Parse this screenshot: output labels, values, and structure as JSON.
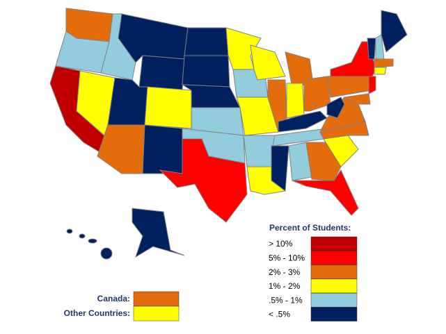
{
  "legend": {
    "title": "Percent of Students:",
    "items": [
      {
        "label": "> 10%",
        "color": "#c00000"
      },
      {
        "label": "5% - 10%",
        "color": "#ff0000"
      },
      {
        "label": "2% - 3%",
        "color": "#e46c0a"
      },
      {
        "label": "1% - 2%",
        "color": "#ffff00"
      },
      {
        "label": ".5% - 1%",
        "color": "#93cddd"
      },
      {
        "label": "< .5%",
        "color": "#002060"
      }
    ]
  },
  "other": [
    {
      "label": "Canada:",
      "color": "#e46c0a"
    },
    {
      "label": "Other Countries:",
      "color": "#ffff00"
    }
  ]
}
